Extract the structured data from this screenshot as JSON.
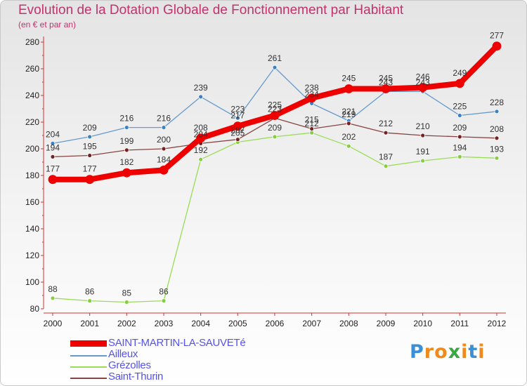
{
  "chart_data": {
    "type": "line",
    "title": "Evolution de la Dotation Globale de Fonctionnement par Habitant",
    "subtitle": "(en € et par an)",
    "xlabel": "",
    "ylabel": "",
    "categories": [
      "2000",
      "2001",
      "2002",
      "2003",
      "2004",
      "2005",
      "2006",
      "2007",
      "2008",
      "2009",
      "2010",
      "2011",
      "2012"
    ],
    "ylim": [
      80,
      280
    ],
    "yticks": [
      80,
      100,
      120,
      140,
      160,
      180,
      200,
      220,
      240,
      260,
      280
    ],
    "grid": false,
    "legend_position": "bottom-left",
    "series": [
      {
        "name": "Grézolles",
        "color": "#99dd55",
        "point_color": "#88cc44",
        "width": 1.3,
        "radius": 3,
        "values": [
          88,
          86,
          85,
          86,
          192,
          205,
          209,
          212,
          202,
          187,
          191,
          194,
          193
        ],
        "labels": [
          "88",
          "86",
          "85",
          "86",
          "192",
          "205",
          "209",
          "212",
          "202",
          "187",
          "191",
          "194",
          "193"
        ]
      },
      {
        "name": "Ailleux",
        "color": "#6699cc",
        "point_color": "#3b82c4",
        "width": 1.3,
        "radius": 3,
        "values": [
          204,
          209,
          216,
          216,
          239,
          223,
          261,
          234,
          221,
          243,
          243,
          225,
          228
        ],
        "labels": [
          "204",
          "209",
          "216",
          "216",
          "239",
          "223",
          "261",
          "234",
          "221",
          "243",
          "243",
          "225",
          "228"
        ]
      },
      {
        "name": "Saint-Thurin",
        "color": "#884444",
        "point_color": "#772222",
        "width": 1.3,
        "radius": 3,
        "values": [
          194,
          195,
          199,
          200,
          204,
          207,
          223,
          215,
          219,
          212,
          210,
          209,
          208
        ],
        "labels": [
          "194",
          "195",
          "199",
          "200",
          "204",
          "207",
          "223",
          "215",
          "219",
          "212",
          "210",
          "209",
          "208"
        ]
      },
      {
        "name": "SAINT-MARTIN-LA-SAUVETé",
        "color": "#ee0000",
        "point_color": "#ee0000",
        "width": 8,
        "radius": 6,
        "values": [
          177,
          177,
          182,
          184,
          208,
          217,
          225,
          238,
          245,
          245,
          246,
          249,
          277
        ],
        "labels": [
          "177",
          "177",
          "182",
          "184",
          "208",
          "217",
          "225",
          "238",
          "245",
          "245",
          "246",
          "249",
          "277"
        ]
      }
    ]
  },
  "legend": [
    {
      "label": "SAINT-MARTIN-LA-SAUVETé",
      "color": "#ee0000"
    },
    {
      "label": "Ailleux",
      "color": "#6699cc"
    },
    {
      "label": "Grézolles",
      "color": "#99dd55"
    },
    {
      "label": "Saint-Thurin",
      "color": "#884444"
    }
  ],
  "logo": {
    "letters": [
      "P",
      "r",
      "o",
      "x",
      "i",
      "t",
      "i"
    ],
    "colors": [
      "#3a8fd6",
      "#f08a1c",
      "#f08a1c",
      "#3aa842",
      "#f08a1c",
      "#3a8fd6",
      "#f08a1c"
    ]
  }
}
